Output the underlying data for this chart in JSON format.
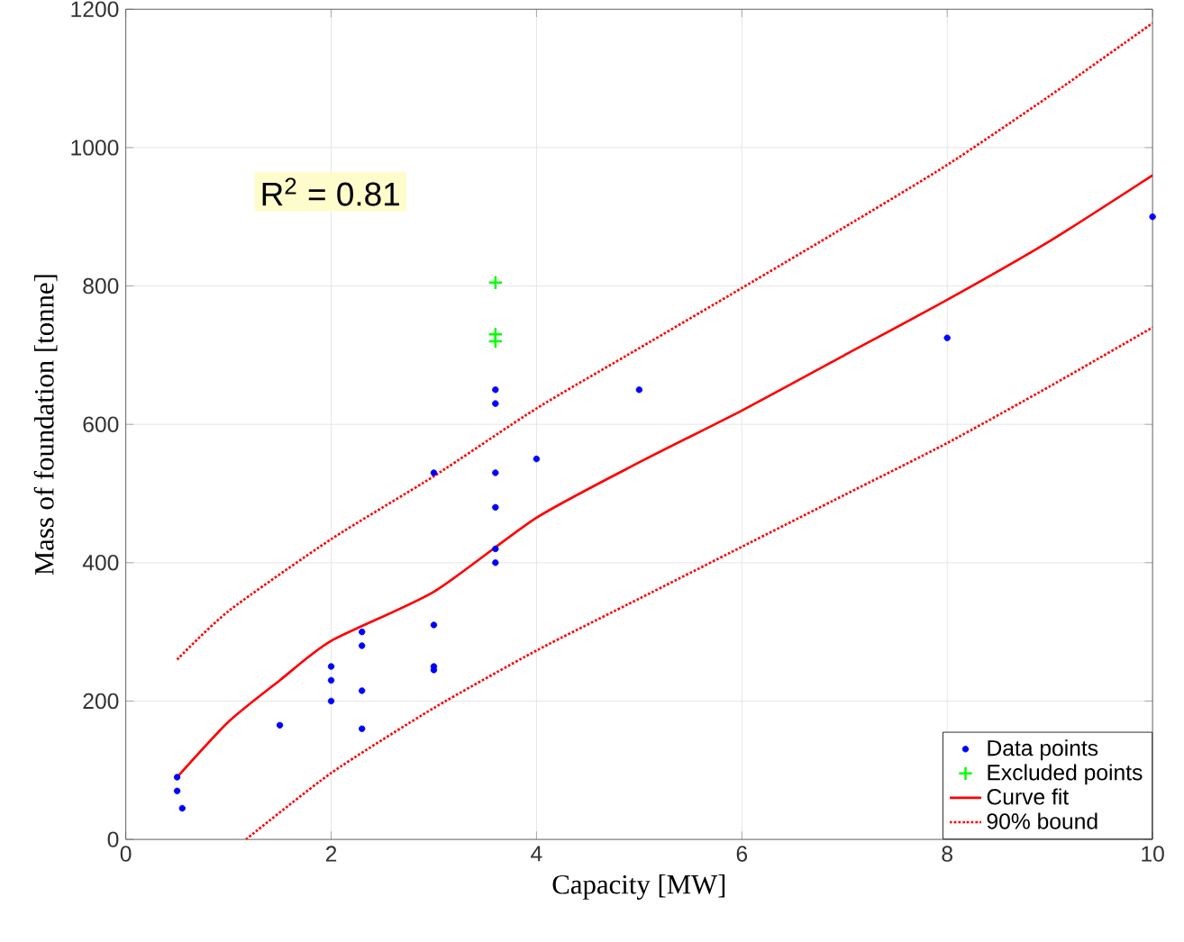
{
  "chart_data": {
    "type": "scatter",
    "xlabel": "Capacity [MW]",
    "ylabel": "Mass of foundation [tonne]",
    "xlim": [
      0,
      10
    ],
    "ylim": [
      0,
      1200
    ],
    "xticks": [
      0,
      2,
      4,
      6,
      8,
      10
    ],
    "yticks": [
      0,
      200,
      400,
      600,
      800,
      1000,
      1200
    ],
    "grid": true,
    "legend": "bottom right",
    "annotations": [
      "R$^{2}$ = 0.81"
    ],
    "series": [
      {
        "name": "Data points",
        "marker": "circle",
        "color": "#0000ff",
        "x": [
          0.5,
          0.5,
          0.55,
          1.5,
          2,
          2,
          2,
          2.3,
          2.3,
          2.3,
          2.3,
          3,
          3,
          3,
          3,
          3.6,
          3.6,
          3.6,
          3.6,
          3.6,
          3.6,
          4,
          5,
          8,
          10
        ],
        "values": [
          90,
          70,
          45,
          165,
          250,
          230,
          200,
          300,
          280,
          215,
          160,
          530,
          310,
          250,
          245,
          650,
          630,
          530,
          480,
          420,
          400,
          550,
          650,
          725,
          900
        ]
      },
      {
        "name": "Excluded points",
        "marker": "cross",
        "color": "#00ff00",
        "x": [
          3.6,
          3.6,
          3.6
        ],
        "values": [
          805,
          730,
          720
        ]
      },
      {
        "name": "Curve fit",
        "type": "line",
        "line_style": "solid",
        "color": "#ff0000",
        "x": [
          0.5,
          1,
          1.5,
          2,
          3,
          4,
          5,
          6,
          7,
          8,
          9,
          10
        ],
        "values": [
          90,
          170,
          230,
          287,
          358,
          465,
          545,
          620,
          700,
          780,
          865,
          960
        ]
      },
      {
        "name": "90% bound",
        "type": "line",
        "line_style": "dotted",
        "color": "#ff0000",
        "x": [
          0.5,
          1,
          2,
          3,
          4,
          5,
          6,
          7,
          8,
          9,
          10
        ],
        "values": [
          260,
          330,
          434,
          525,
          623,
          710,
          797,
          885,
          975,
          1075,
          1180
        ]
      },
      {
        "type": "line",
        "line_style": "dotted",
        "color": "#ff0000",
        "x": [
          1.17,
          2,
          3,
          4,
          5,
          6,
          7,
          8,
          9,
          10
        ],
        "values": [
          0,
          96,
          190,
          273,
          348,
          423,
          498,
          573,
          655,
          740
        ]
      }
    ]
  }
}
